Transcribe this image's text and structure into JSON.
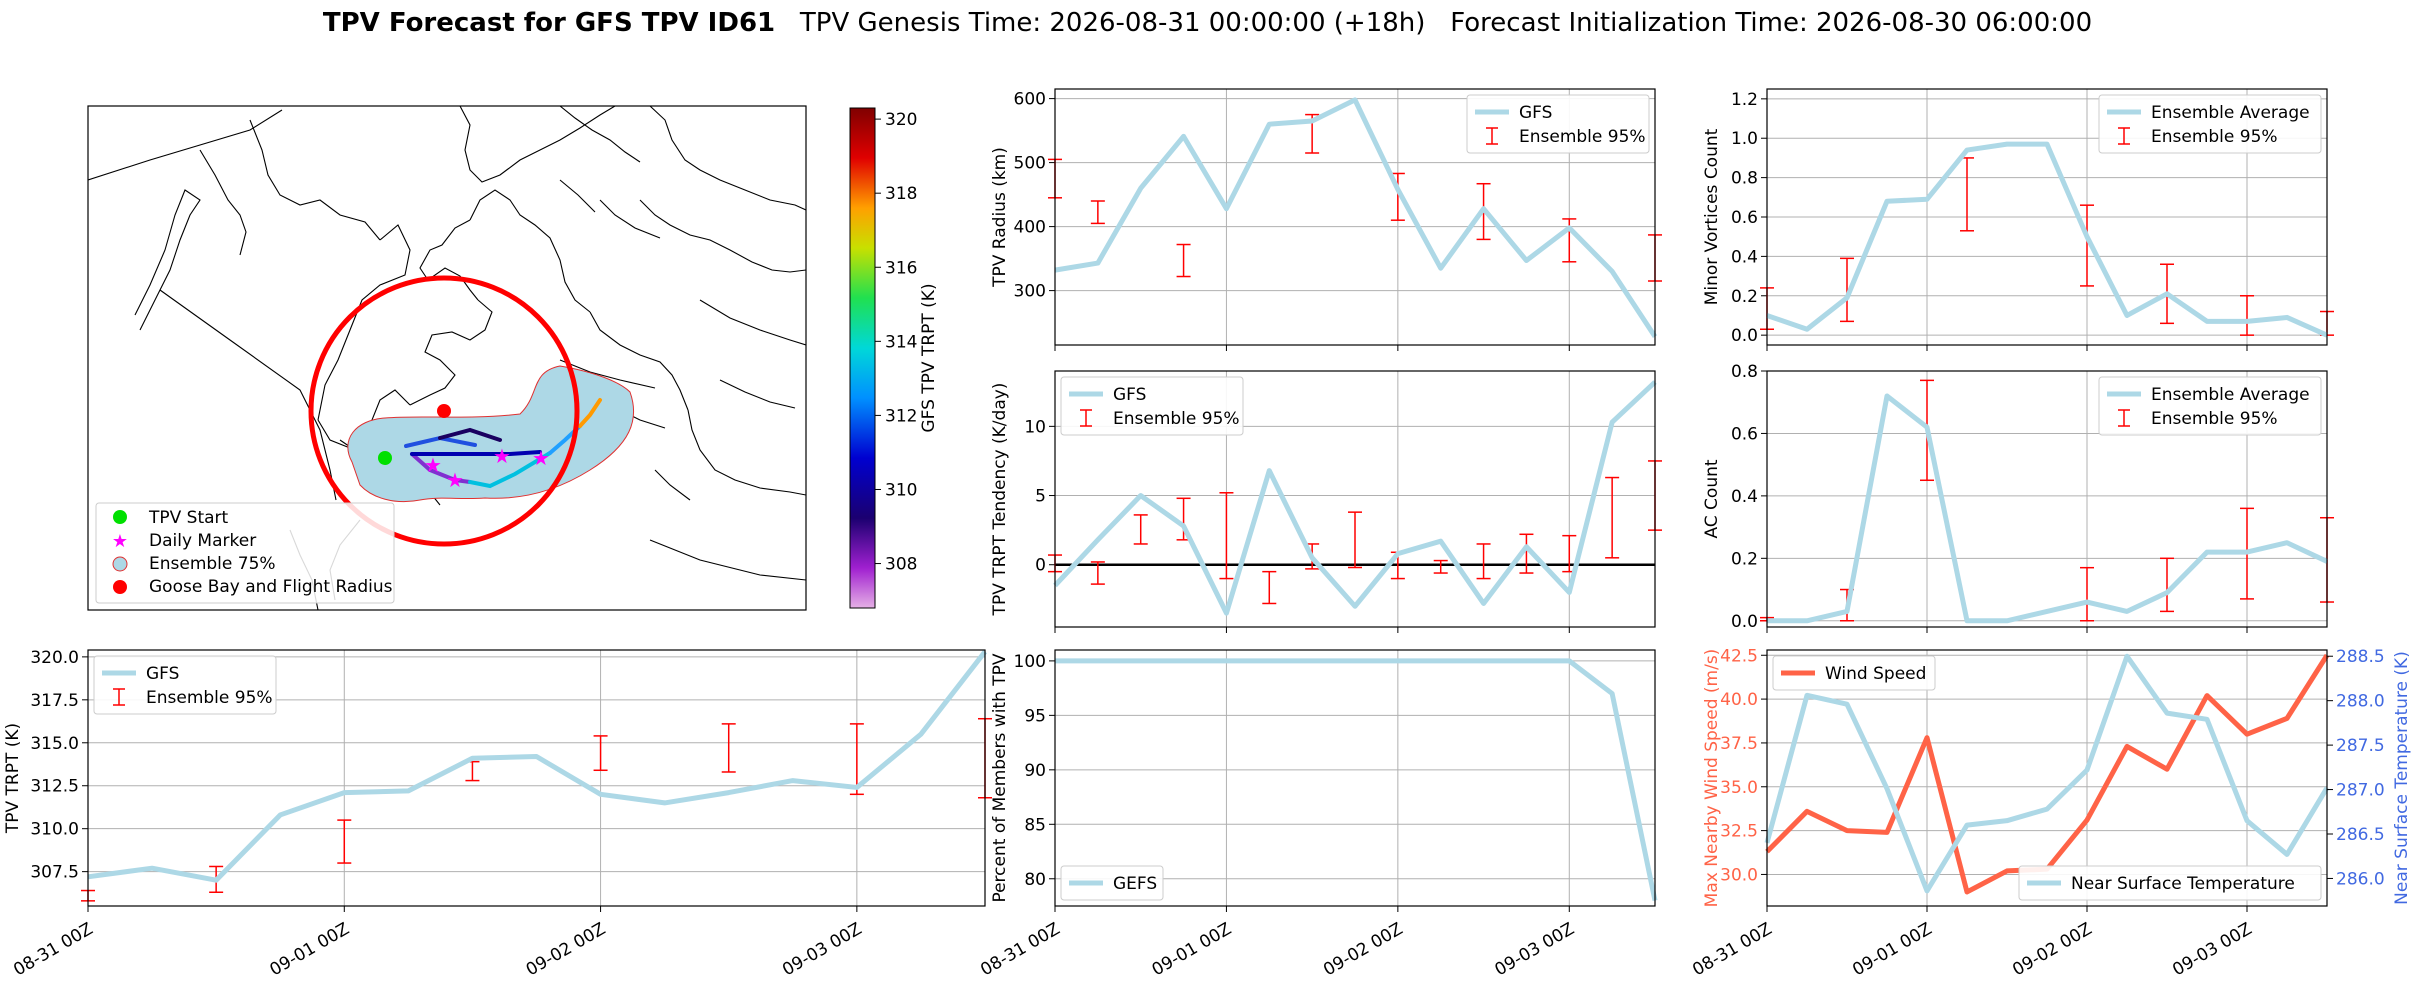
{
  "header": {
    "title_bold": "TPV Forecast for GFS TPV ID61",
    "title_genesis": "TPV Genesis Time: 2026-08-31 00:00:00 (+18h)",
    "title_init": "Forecast Initialization Time: 2026-08-30 06:00:00"
  },
  "colors": {
    "gfs_line": "#add8e6",
    "errorbar": "#ff0000",
    "wind": "#ff6347",
    "temp_axis": "#4169e1",
    "goose_circle": "#ff0000",
    "ensemble_fill": "#add8e6",
    "zero_line": "#000000"
  },
  "map": {
    "legend": [
      "TPV Start",
      "Daily Marker",
      "Ensemble 75%",
      "Goose Bay and Flight Radius"
    ],
    "colorbar": {
      "label": "GFS TPV TRPT (K)",
      "ticks": [
        "320",
        "318",
        "316",
        "314",
        "312",
        "310",
        "308"
      ],
      "range": [
        306.8,
        320.3
      ]
    }
  },
  "chart_data": [
    {
      "id": "radius",
      "type": "line",
      "ylabel": "TPV Radius (km)",
      "ylim": [
        215,
        615
      ],
      "yticks": [
        300,
        400,
        500,
        600
      ],
      "series": [
        {
          "name": "GFS",
          "values": [
            332,
            343,
            460,
            541,
            428,
            560,
            565,
            598,
            458,
            335,
            428,
            347,
            398,
            330,
            228
          ]
        }
      ],
      "errorbars": {
        "name": "Ensemble 95%",
        "x": [
          0,
          1,
          3,
          6,
          8,
          10,
          12,
          14
        ],
        "low": [
          445,
          405,
          322,
          515,
          410,
          380,
          345,
          315
        ],
        "high": [
          505,
          440,
          372,
          575,
          483,
          467,
          412,
          387
        ]
      },
      "legend": [
        "GFS",
        "Ensemble 95%"
      ]
    },
    {
      "id": "minor",
      "type": "line",
      "ylabel": "Minor Vortices Count",
      "ylim": [
        -0.05,
        1.25
      ],
      "yticks": [
        0.0,
        0.2,
        0.4,
        0.6,
        0.8,
        1.0,
        1.2
      ],
      "series": [
        {
          "name": "Ensemble Average",
          "values": [
            0.1,
            0.03,
            0.19,
            0.68,
            0.69,
            0.94,
            0.97,
            0.97,
            0.5,
            0.1,
            0.21,
            0.07,
            0.07,
            0.09,
            0.0
          ]
        }
      ],
      "errorbars": {
        "name": "Ensemble 95%",
        "x": [
          0,
          2,
          5,
          8,
          10,
          12,
          14
        ],
        "low": [
          0.03,
          0.07,
          0.53,
          0.25,
          0.06,
          0.0,
          0.0
        ],
        "high": [
          0.24,
          0.39,
          0.9,
          0.66,
          0.36,
          0.2,
          0.12
        ]
      },
      "legend": [
        "Ensemble Average",
        "Ensemble 95%"
      ]
    },
    {
      "id": "tendency",
      "type": "line",
      "ylabel": "TPV TRPT Tendency (K/day)",
      "ylim": [
        -4.5,
        14
      ],
      "yticks": [
        0,
        5,
        10
      ],
      "series": [
        {
          "name": "GFS",
          "values": [
            -1.5,
            1.8,
            5.0,
            2.8,
            -3.5,
            6.8,
            0.5,
            -3.0,
            0.8,
            1.7,
            -2.8,
            1.3,
            -2.0,
            10.3,
            13.2
          ]
        }
      ],
      "errorbars": {
        "name": "Ensemble 95%",
        "x": [
          0,
          1,
          2,
          3,
          4,
          5,
          6,
          7,
          8,
          9,
          10,
          11,
          12,
          13,
          14
        ],
        "low": [
          -0.5,
          -1.4,
          1.5,
          1.8,
          -1.0,
          -2.8,
          -0.3,
          -0.2,
          -1.0,
          -0.6,
          -1.0,
          -0.6,
          -0.5,
          0.5,
          2.5
        ],
        "high": [
          0.7,
          0.2,
          3.6,
          4.8,
          5.2,
          -0.5,
          1.5,
          3.8,
          0.9,
          0.3,
          1.5,
          2.2,
          2.1,
          6.3,
          7.5
        ]
      },
      "legend": [
        "GFS",
        "Ensemble 95%"
      ]
    },
    {
      "id": "ac",
      "type": "line",
      "ylabel": "AC Count",
      "ylim": [
        -0.02,
        0.8
      ],
      "yticks": [
        0.0,
        0.2,
        0.4,
        0.6,
        0.8
      ],
      "series": [
        {
          "name": "Ensemble Average",
          "values": [
            0.0,
            0.0,
            0.03,
            0.72,
            0.62,
            0.0,
            0.0,
            0.03,
            0.06,
            0.03,
            0.09,
            0.22,
            0.22,
            0.25,
            0.19
          ]
        }
      ],
      "errorbars": {
        "name": "Ensemble 95%",
        "x": [
          0,
          2,
          4,
          6,
          8,
          10,
          12,
          14
        ],
        "low": [
          0.0,
          0.0,
          0.45,
          0.0,
          0.0,
          0.03,
          0.07,
          0.06
        ],
        "high": [
          0.01,
          0.1,
          0.77,
          0.0,
          0.17,
          0.2,
          0.36,
          0.33
        ]
      },
      "legend": [
        "Ensemble Average",
        "Ensemble 95%"
      ]
    },
    {
      "id": "trpt",
      "type": "line",
      "ylabel": "TPV TRPT (K)",
      "ylim": [
        305.5,
        320.4
      ],
      "yticks": [
        307.5,
        310.0,
        312.5,
        315.0,
        317.5,
        320.0
      ],
      "xticklabels": [
        "08-31 00Z",
        "09-01 00Z",
        "09-02 00Z",
        "09-03 00Z"
      ],
      "series": [
        {
          "name": "GFS",
          "values": [
            307.2,
            307.7,
            307.0,
            310.8,
            312.1,
            312.2,
            314.1,
            314.2,
            312.0,
            311.5,
            312.1,
            312.8,
            312.4,
            315.5,
            320.3
          ]
        }
      ],
      "errorbars": {
        "name": "Ensemble 95%",
        "x": [
          0,
          2,
          4,
          6,
          8,
          10,
          12,
          14
        ],
        "low": [
          305.8,
          306.3,
          308.0,
          312.8,
          313.4,
          313.3,
          312.0,
          311.8
        ],
        "high": [
          306.4,
          307.8,
          310.5,
          313.9,
          315.4,
          316.1,
          316.1,
          316.4
        ]
      },
      "legend": [
        "GFS",
        "Ensemble 95%"
      ]
    },
    {
      "id": "percent",
      "type": "line",
      "ylabel": "Percent of Members with TPV",
      "ylim": [
        77.5,
        101
      ],
      "yticks": [
        80,
        85,
        90,
        95,
        100
      ],
      "xticklabels": [
        "08-31 00Z",
        "09-01 00Z",
        "09-02 00Z",
        "09-03 00Z"
      ],
      "series": [
        {
          "name": "GEFS",
          "values": [
            100,
            100,
            100,
            100,
            100,
            100,
            100,
            100,
            100,
            100,
            100,
            100,
            100,
            97,
            78
          ]
        }
      ],
      "legend": [
        "GEFS"
      ]
    },
    {
      "id": "wind_temp",
      "type": "line",
      "ylabel": "Max Nearby Wind Speed (m/s)",
      "ylabel_right": "Near Surface Temperature (K)",
      "ylim": [
        28.2,
        42.8
      ],
      "yticks": [
        30.0,
        32.5,
        35.0,
        37.5,
        40.0,
        42.5
      ],
      "ylim_right": [
        285.69,
        288.57
      ],
      "yticks_right": [
        286.0,
        286.5,
        287.0,
        287.5,
        288.0,
        288.5
      ],
      "xticklabels": [
        "08-31 00Z",
        "09-01 00Z",
        "09-02 00Z",
        "09-03 00Z"
      ],
      "series": [
        {
          "name": "Wind Speed",
          "values": [
            31.3,
            33.6,
            32.5,
            32.4,
            37.8,
            29.0,
            30.2,
            30.3,
            33.1,
            37.3,
            36.0,
            40.2,
            38.0,
            38.9,
            42.5
          ]
        },
        {
          "name": "Near Surface Temperature",
          "values": [
            286.4,
            288.06,
            287.96,
            287.01,
            285.86,
            286.6,
            286.65,
            286.78,
            287.22,
            288.5,
            287.86,
            287.79,
            286.65,
            286.27,
            287.02
          ]
        }
      ],
      "legend": [
        "Wind Speed",
        "Near Surface Temperature"
      ]
    }
  ]
}
